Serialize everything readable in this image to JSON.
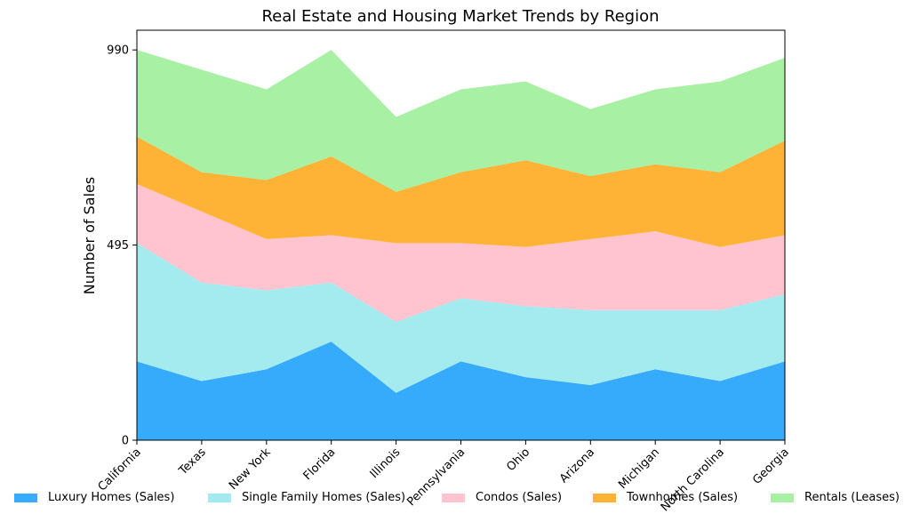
{
  "chart_data": {
    "type": "area",
    "stacked": true,
    "title": "Real Estate and Housing Market Trends by Region",
    "xlabel": "",
    "ylabel": "Number of Sales",
    "categories": [
      "California",
      "Texas",
      "New York",
      "Florida",
      "Illinois",
      "Pennsylvania",
      "Ohio",
      "Arizona",
      "Michigan",
      "North Carolina",
      "Georgia"
    ],
    "yticks": [
      0,
      495,
      990
    ],
    "ylim": [
      0,
      1040
    ],
    "grid": false,
    "legend_position": "bottom",
    "series": [
      {
        "name": "Luxury Homes (Sales)",
        "color": "#36abfc",
        "values": [
          200,
          150,
          180,
          250,
          120,
          200,
          160,
          140,
          180,
          150,
          200
        ]
      },
      {
        "name": "Single Family Homes (Sales)",
        "color": "#a4ebf0",
        "values": [
          300,
          250,
          200,
          150,
          180,
          160,
          180,
          190,
          150,
          180,
          170
        ]
      },
      {
        "name": "Condos (Sales)",
        "color": "#ffc4d0",
        "values": [
          150,
          180,
          130,
          120,
          200,
          140,
          150,
          180,
          200,
          160,
          150
        ]
      },
      {
        "name": "Townhomes (Sales)",
        "color": "#ffb336",
        "values": [
          120,
          100,
          150,
          200,
          130,
          180,
          220,
          160,
          170,
          190,
          240
        ]
      },
      {
        "name": "Rentals (Leases)",
        "color": "#a8f0a4",
        "values": [
          220,
          260,
          230,
          270,
          190,
          210,
          200,
          170,
          190,
          230,
          210
        ]
      }
    ]
  }
}
